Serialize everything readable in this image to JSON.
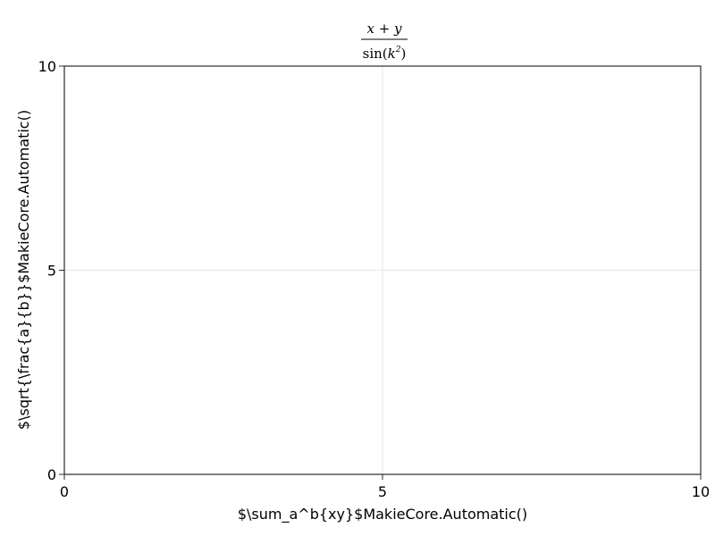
{
  "chart_data": {
    "type": "line",
    "title": {
      "numerator": "x + y",
      "fn": "sin",
      "open": "(",
      "var": "k",
      "sup": "2",
      "close": ")"
    },
    "xlabel": "$\\sum_a^b{xy}$MakieCore.Automatic()",
    "ylabel": "$\\sqrt{\\frac{a}{b}}$MakieCore.Automatic()",
    "xlim": [
      0,
      10
    ],
    "ylim": [
      0,
      10
    ],
    "xticks": [
      0,
      5,
      10
    ],
    "yticks": [
      0,
      5,
      10
    ],
    "grid": true,
    "series": []
  }
}
